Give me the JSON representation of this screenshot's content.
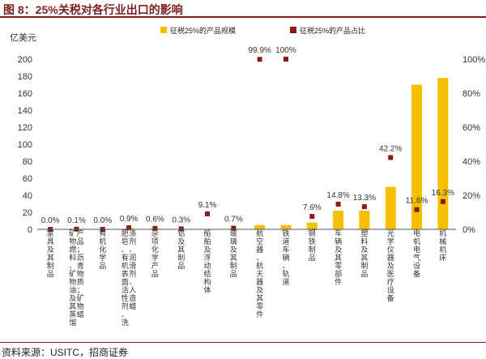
{
  "header": {
    "title": "图 8：25%关税对各行业出口的影响"
  },
  "footer": {
    "source": "资料来源：USITC，招商证券"
  },
  "chart_data": {
    "type": "bar+scatter",
    "left_axis_label": "亿美元",
    "ylim_left": [
      0,
      200
    ],
    "yticks_left": [
      "0",
      "20",
      "40",
      "60",
      "80",
      "100",
      "120",
      "140",
      "160",
      "180",
      "200"
    ],
    "ylim_right": [
      0,
      100
    ],
    "yticks_right": [
      "0%",
      "20%",
      "40%",
      "60%",
      "80%",
      "100%"
    ],
    "legend": {
      "bar": "征税25%的产品规模",
      "dot": "征税25%的产品占比"
    },
    "colors": {
      "bar": "#f5c000",
      "dot": "#8b1a1a"
    },
    "categories": [
      "家具及其制品",
      "矿物燃料、矿物油及其蒸馏产品；沥青物质；矿物蜡",
      "有机化学品",
      "肥皂、有机表面活性剂、洗涤剂、润滑剂、人造蜡",
      "杂项化学产品",
      "铝及其制品",
      "船舶及浮动结构体",
      "玻璃及其制品",
      "航空器、航天器及其零件",
      "铁道车辆、轨道",
      "钢铁制品",
      "车辆及其零部件",
      "塑料及其制品",
      "光学仪器及医疗设备",
      "电机电气设备",
      "机械机床"
    ],
    "values_bar": [
      0,
      0,
      0,
      1,
      1,
      0,
      0,
      0,
      5,
      5,
      8,
      22,
      22,
      50,
      170,
      178
    ],
    "values_pct": [
      0.0,
      0.1,
      0.0,
      0.9,
      0.6,
      0.3,
      9.1,
      0.7,
      99.9,
      100.0,
      7.6,
      14.8,
      13.3,
      42.2,
      11.6,
      16.3
    ],
    "pct_labels": [
      "0.0%",
      "0.1%",
      "0.0%",
      "0.9%",
      "0.6%",
      "0.3%",
      "9.1%",
      "0.7%",
      "99.9%",
      "100%",
      "7.6%",
      "14.8%",
      "13.3%",
      "42.2%",
      "11.6%",
      "16.3%"
    ]
  }
}
